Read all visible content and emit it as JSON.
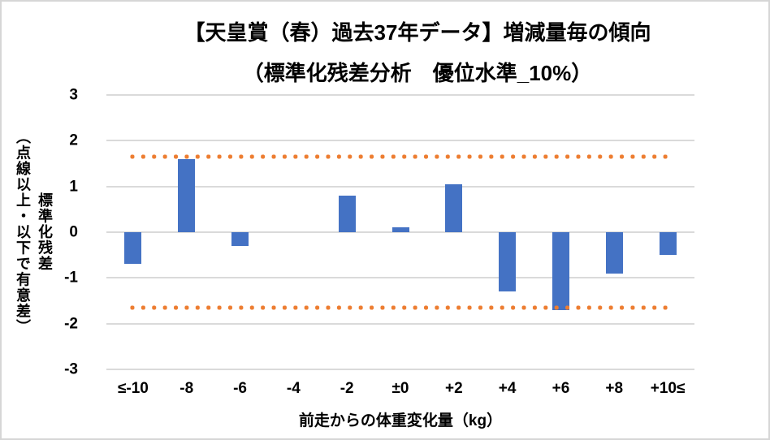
{
  "figure": {
    "title_line1": "【天皇賞（春）過去37年データ】増減量毎の傾向",
    "title_line2": "（標準化残差分析　優位水準_10%）"
  },
  "chart_data": {
    "type": "bar",
    "title": "【天皇賞（春）過去37年データ】増減量毎の傾向（標準化残差分析 優位水準_10%）",
    "categories": [
      "≤-10",
      "-8",
      "-6",
      "-4",
      "-2",
      "±0",
      "+2",
      "+4",
      "+6",
      "+8",
      "+10≤"
    ],
    "values": [
      -0.7,
      1.6,
      -0.3,
      0,
      0.8,
      0.1,
      1.05,
      -1.3,
      -1.7,
      -0.9,
      -0.5
    ],
    "xlabel": "前走からの体重変化量（kg）",
    "ylabel": "標準化残差",
    "ylabel_note": "（点線以上・以下で有意差）",
    "y_ticks": [
      3,
      2,
      1,
      0,
      -1,
      -2,
      -3
    ],
    "ylim": [
      -3,
      3
    ],
    "significance_thresholds": [
      1.645,
      -1.645
    ],
    "grid": true,
    "legend": "none",
    "colors": {
      "bar": "#4472C4",
      "threshold_dots": "#ED7D31",
      "gridline": "#DADADA",
      "text": "#000000",
      "border": "#D6D6D6"
    }
  }
}
